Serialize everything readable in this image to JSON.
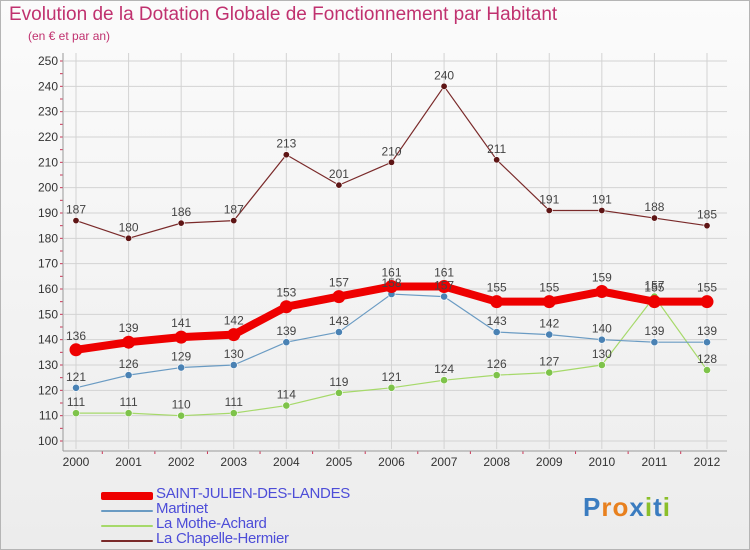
{
  "header": {
    "title": "Evolution de la Dotation Globale de Fonctionnement par Habitant",
    "subtitle": "(en € et par an)"
  },
  "logo": {
    "text": "Proxiti",
    "letters": [
      "P",
      "r",
      "o",
      "x",
      "i",
      "t",
      "i"
    ],
    "colors": [
      "#3a7cc0",
      "#e8801e",
      "#e8801e",
      "#3a7cc0",
      "#8bbf2a",
      "#3a7cc0",
      "#8bbf2a"
    ]
  },
  "chart_data": {
    "type": "line",
    "title": "Evolution de la Dotation Globale de Fonctionnement par Habitant",
    "subtitle": "(en € et par an)",
    "x": [
      "2000",
      "2001",
      "2002",
      "2003",
      "2004",
      "2005",
      "2006",
      "2007",
      "2008",
      "2009",
      "2010",
      "2011",
      "2012"
    ],
    "ylim": [
      100,
      250
    ],
    "yticks": [
      100,
      110,
      120,
      130,
      140,
      150,
      160,
      170,
      180,
      190,
      200,
      210,
      220,
      230,
      240,
      250
    ],
    "grid": true,
    "legend_position": "bottom",
    "series": [
      {
        "name": "La Chapelle-Hermier",
        "color": "#7a2a2a",
        "point_color": "#5e1515",
        "width": 1.2,
        "marker": 3.2,
        "values": [
          187,
          180,
          186,
          187,
          213,
          201,
          210,
          240,
          211,
          191,
          191,
          188,
          185
        ]
      },
      {
        "name": "La Mothe-Achard",
        "color": "#a6d96a",
        "point_color": "#7ec34a",
        "width": 1.2,
        "marker": 3.6,
        "values": [
          111,
          111,
          110,
          111,
          114,
          119,
          121,
          124,
          126,
          127,
          130,
          157,
          128
        ]
      },
      {
        "name": "Martinet",
        "color": "#6a9bc3",
        "point_color": "#4a82b4",
        "width": 1.2,
        "marker": 3.6,
        "values": [
          121,
          126,
          129,
          130,
          139,
          143,
          158,
          157,
          143,
          142,
          140,
          139,
          139
        ]
      },
      {
        "name": "SAINT-JULIEN-DES-LANDES",
        "color": "#ee0000",
        "point_color": "#ee0000",
        "width": 8,
        "marker": 6.5,
        "values": [
          136,
          139,
          141,
          142,
          153,
          157,
          161,
          161,
          155,
          155,
          159,
          155,
          155
        ]
      }
    ]
  },
  "legend": {
    "items": [
      {
        "label": "SAINT-JULIEN-DES-LANDES",
        "color": "#ee0000",
        "text_color": "#4d4dd8",
        "thickness": 8
      },
      {
        "label": "Martinet",
        "color": "#6a9bc3",
        "text_color": "#4d4dd8",
        "thickness": 2
      },
      {
        "label": "La Mothe-Achard",
        "color": "#a6d96a",
        "text_color": "#4d4dd8",
        "thickness": 2
      },
      {
        "label": "La Chapelle-Hermier",
        "color": "#7a2a2a",
        "text_color": "#4d4dd8",
        "thickness": 2
      }
    ]
  }
}
